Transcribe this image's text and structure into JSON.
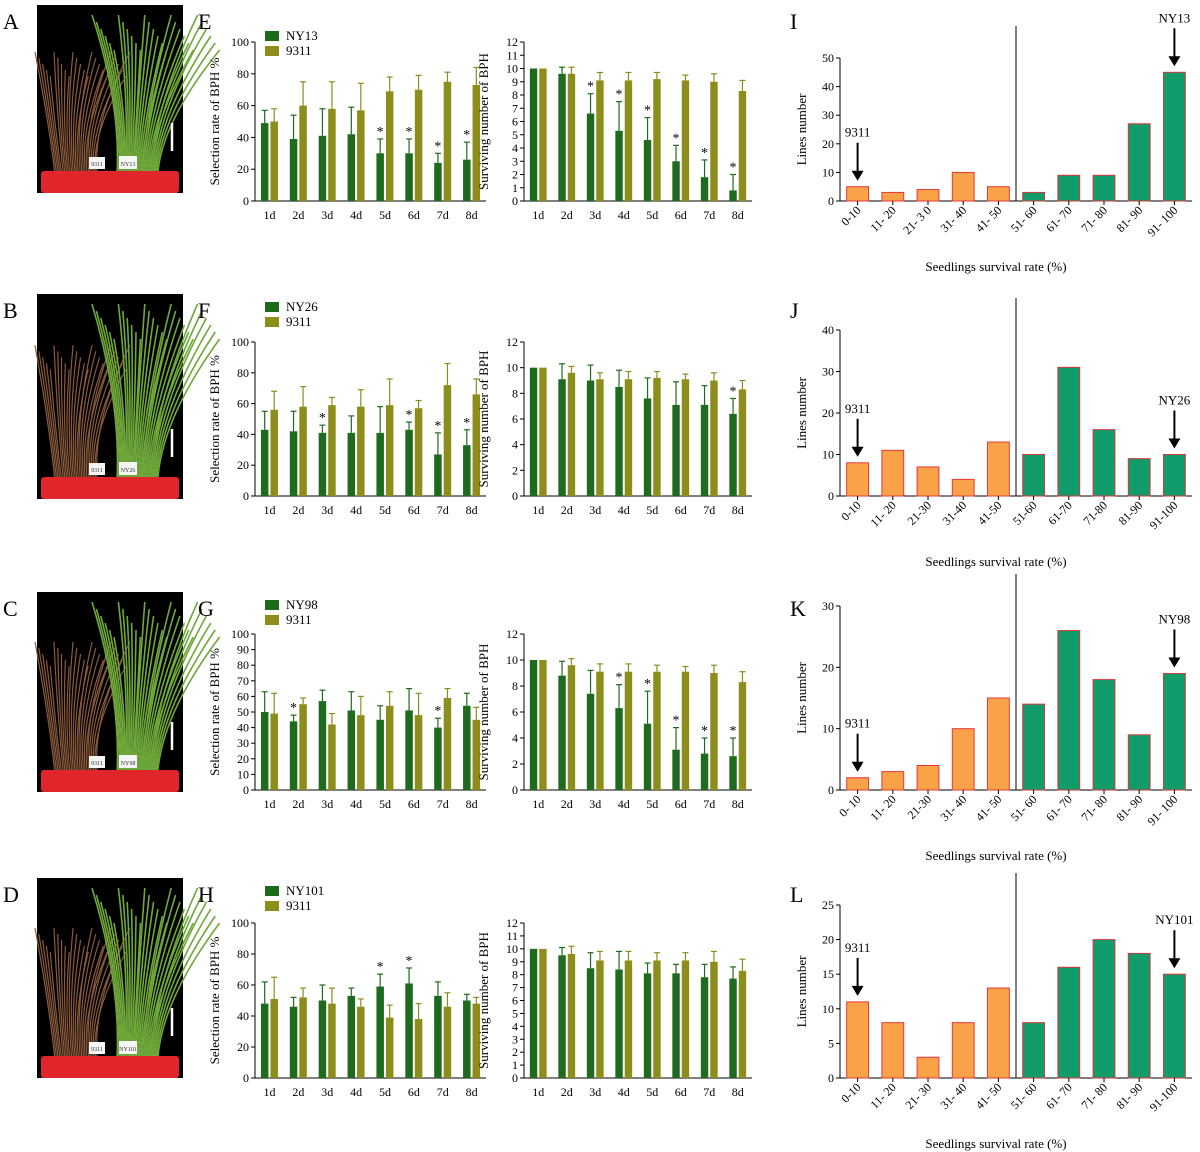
{
  "colors": {
    "ny": "#1e6b1e",
    "c9311": "#8d8d1b",
    "orange": "#f9a247",
    "orange_edge": "#e8373a",
    "green": "#139c6b",
    "green_edge": "#d7373a",
    "photo_bg": "#000000",
    "pot": "#e0262a",
    "bar_line": "#000000"
  },
  "photos": [
    {
      "letter": "A",
      "label_left": "9311",
      "label_right": "NY13"
    },
    {
      "letter": "B",
      "label_left": "9311",
      "label_right": "NY26"
    },
    {
      "letter": "C",
      "label_left": "9311",
      "label_right": "NY98"
    },
    {
      "letter": "D",
      "label_left": "9311",
      "label_right": "NY101"
    }
  ],
  "chart_data": [
    {
      "panel": "E",
      "type": "bar",
      "line": "NY13",
      "control": "9311",
      "categories": [
        "1d",
        "2d",
        "3d",
        "4d",
        "5d",
        "6d",
        "7d",
        "8d"
      ],
      "left": {
        "ylabel": "Selection rate of BPH %",
        "ylim": [
          0,
          100
        ],
        "yticks": [
          "0",
          "20",
          "40",
          "60",
          "80",
          "100"
        ],
        "series": [
          {
            "name": "NY13",
            "values": [
              49,
              39,
              41,
              42,
              30,
              30,
              24,
              26
            ],
            "err": [
              8,
              15,
              17,
              17,
              9,
              9,
              6,
              11
            ]
          },
          {
            "name": "9311",
            "values": [
              50,
              60,
              58,
              57,
              69,
              70,
              75,
              73
            ],
            "err": [
              8,
              15,
              17,
              17,
              9,
              9,
              6,
              11
            ]
          }
        ],
        "stars": [
          false,
          false,
          false,
          false,
          true,
          true,
          true,
          true
        ]
      },
      "right": {
        "ylabel": "Surviving number of BPH",
        "ylim": [
          0,
          12
        ],
        "yticks": [
          "0",
          "1",
          "2",
          "3",
          "4",
          "5",
          "6",
          "7",
          "8",
          "9",
          "10",
          "11",
          "12"
        ],
        "series": [
          {
            "name": "NY13",
            "values": [
              10,
              9.6,
              6.6,
              5.3,
              4.6,
              3.0,
              1.8,
              0.8
            ],
            "err": [
              0,
              0.5,
              1.5,
              2.2,
              1.7,
              1.2,
              1.3,
              1.2
            ]
          },
          {
            "name": "9311",
            "values": [
              10,
              9.6,
              9.1,
              9.1,
              9.2,
              9.1,
              9.0,
              8.3
            ],
            "err": [
              0,
              0.5,
              0.6,
              0.6,
              0.5,
              0.4,
              0.6,
              0.8
            ]
          }
        ],
        "stars": [
          false,
          false,
          true,
          true,
          true,
          true,
          true,
          true
        ]
      }
    },
    {
      "panel": "F",
      "type": "bar",
      "line": "NY26",
      "control": "9311",
      "categories": [
        "1d",
        "2d",
        "3d",
        "4d",
        "5d",
        "6d",
        "7d",
        "8d"
      ],
      "left": {
        "ylabel": "Selection rate of BPH %",
        "ylim": [
          0,
          100
        ],
        "yticks": [
          "0",
          "20",
          "40",
          "60",
          "80",
          "100"
        ],
        "series": [
          {
            "name": "NY26",
            "values": [
              43,
              42,
              41,
              41,
              41,
              43,
              27,
              33
            ],
            "err": [
              12,
              13,
              5,
              11,
              17,
              5,
              14,
              10
            ]
          },
          {
            "name": "9311",
            "values": [
              56,
              58,
              59,
              58,
              59,
              57,
              72,
              66
            ],
            "err": [
              12,
              13,
              5,
              11,
              17,
              5,
              14,
              10
            ]
          }
        ],
        "stars": [
          false,
          false,
          true,
          false,
          false,
          true,
          true,
          true
        ]
      },
      "right": {
        "ylabel": "Surviving number of BPH",
        "ylim": [
          0,
          12
        ],
        "yticks": [
          "0",
          "2",
          "4",
          "6",
          "8",
          "10",
          "12"
        ],
        "series": [
          {
            "name": "NY26",
            "values": [
              10,
              9.1,
              9.0,
              8.5,
              7.6,
              7.1,
              7.1,
              6.4
            ],
            "err": [
              0,
              1.2,
              1.2,
              1.3,
              1.6,
              1.8,
              1.5,
              1.2
            ]
          },
          {
            "name": "9311",
            "values": [
              10,
              9.6,
              9.1,
              9.1,
              9.2,
              9.1,
              9.0,
              8.3
            ],
            "err": [
              0,
              0.5,
              0.5,
              0.6,
              0.5,
              0.4,
              0.6,
              0.7
            ]
          }
        ],
        "stars": [
          false,
          false,
          false,
          false,
          false,
          false,
          false,
          true
        ]
      }
    },
    {
      "panel": "G",
      "type": "bar",
      "line": "NY98",
      "control": "9311",
      "categories": [
        "1d",
        "2d",
        "3d",
        "4d",
        "5d",
        "6d",
        "7d",
        "8d"
      ],
      "left": {
        "ylabel": "Selection rate of BPH %",
        "ylim": [
          0,
          100
        ],
        "yticks": [
          "0",
          "10",
          "20",
          "30",
          "40",
          "50",
          "60",
          "70",
          "80",
          "90",
          "100"
        ],
        "series": [
          {
            "name": "NY98",
            "values": [
              50,
              44,
              57,
              51,
              45,
              51,
              40,
              54
            ],
            "err": [
              13,
              4,
              7,
              12,
              9,
              14,
              6,
              8
            ]
          },
          {
            "name": "9311",
            "values": [
              49,
              55,
              42,
              48,
              54,
              48,
              59,
              45
            ],
            "err": [
              13,
              4,
              7,
              12,
              9,
              14,
              6,
              8
            ]
          }
        ],
        "stars": [
          false,
          true,
          false,
          false,
          false,
          false,
          true,
          false
        ]
      },
      "right": {
        "ylabel": "Surviving number of BPH",
        "ylim": [
          0,
          12
        ],
        "yticks": [
          "0",
          "2",
          "4",
          "6",
          "8",
          "10",
          "12"
        ],
        "series": [
          {
            "name": "NY98",
            "values": [
              10,
              8.8,
              7.4,
              6.3,
              5.1,
              3.1,
              2.8,
              2.6
            ],
            "err": [
              0,
              1.1,
              1.8,
              1.8,
              2.5,
              1.7,
              1.2,
              1.4
            ]
          },
          {
            "name": "9311",
            "values": [
              10,
              9.6,
              9.1,
              9.1,
              9.1,
              9.1,
              9.0,
              8.3
            ],
            "err": [
              0,
              0.5,
              0.6,
              0.6,
              0.5,
              0.4,
              0.6,
              0.8
            ]
          }
        ],
        "stars": [
          false,
          false,
          false,
          true,
          true,
          true,
          true,
          true
        ]
      }
    },
    {
      "panel": "H",
      "type": "bar",
      "line": "NY101",
      "control": "9311",
      "categories": [
        "1d",
        "2d",
        "3d",
        "4d",
        "5d",
        "6d",
        "7d",
        "8d"
      ],
      "left": {
        "ylabel": "Selection rate of BPH %",
        "ylim": [
          0,
          100
        ],
        "yticks": [
          "0",
          "20",
          "40",
          "60",
          "80",
          "100"
        ],
        "series": [
          {
            "name": "NY101",
            "values": [
              48,
              46,
              50,
              53,
              59,
              61,
              53,
              50
            ],
            "err": [
              14,
              6,
              10,
              5,
              8,
              10,
              9,
              4
            ]
          },
          {
            "name": "9311",
            "values": [
              51,
              52,
              48,
              46,
              39,
              38,
              46,
              48
            ],
            "err": [
              14,
              6,
              10,
              5,
              8,
              10,
              9,
              4
            ]
          }
        ],
        "stars": [
          false,
          false,
          false,
          false,
          true,
          true,
          false,
          false
        ]
      },
      "right": {
        "ylabel": "Surviving number of BPH",
        "ylim": [
          0,
          12
        ],
        "yticks": [
          "0",
          "1",
          "2",
          "3",
          "4",
          "5",
          "6",
          "7",
          "8",
          "9",
          "10",
          "11",
          "12"
        ],
        "series": [
          {
            "name": "NY101",
            "values": [
              10,
              9.5,
              8.5,
              8.4,
              8.1,
              8.1,
              7.8,
              7.7
            ],
            "err": [
              0,
              0.6,
              1.2,
              1.4,
              0.8,
              0.7,
              1.0,
              0.9
            ]
          },
          {
            "name": "9311",
            "values": [
              10,
              9.6,
              9.1,
              9.1,
              9.1,
              9.1,
              9.0,
              8.3
            ],
            "err": [
              0,
              0.6,
              0.7,
              0.7,
              0.6,
              0.6,
              0.8,
              0.9
            ]
          }
        ],
        "stars": [
          false,
          false,
          false,
          false,
          false,
          false,
          false,
          false
        ]
      }
    },
    {
      "panel": "I",
      "type": "bar",
      "xlabel": "Seedlings survival rate (%)",
      "ylabel": "Lines number",
      "categories": [
        "0-10",
        "11- 20",
        "21- 3 0",
        "31- 40",
        "41- 50",
        "51- 60",
        "61- 70",
        "71- 80",
        "81- 90",
        "91- 100"
      ],
      "values": [
        5,
        3,
        4,
        10,
        5,
        3,
        9,
        9,
        27,
        45
      ],
      "ylim": [
        0,
        50
      ],
      "yticks": [
        "0",
        "10",
        "20",
        "30",
        "40",
        "50"
      ],
      "arrow_left": "9311",
      "arrow_left_index": 0,
      "arrow_right": "NY13",
      "arrow_right_index": 9
    },
    {
      "panel": "J",
      "type": "bar",
      "xlabel": "Seedlings survival rate (%)",
      "ylabel": "Lines number",
      "categories": [
        "0-10",
        "11- 20",
        "21-30",
        "31-40",
        "41-50",
        "51-60",
        "61-70",
        "71-80",
        "81-90",
        "91-100"
      ],
      "values": [
        8,
        11,
        7,
        4,
        13,
        10,
        31,
        16,
        9,
        10
      ],
      "ylim": [
        0,
        40
      ],
      "yticks": [
        "0",
        "10",
        "20",
        "30",
        "40"
      ],
      "arrow_left": "9311",
      "arrow_left_index": 0,
      "arrow_right": "NY26",
      "arrow_right_index": 9
    },
    {
      "panel": "K",
      "type": "bar",
      "xlabel": "Seedlings survival rate (%)",
      "ylabel": "Lines number",
      "categories": [
        "0- 10",
        "11- 20",
        "21-30",
        "31- 40",
        "41- 50",
        "51- 60",
        "61- 70",
        "71- 80",
        "81- 90",
        "91- 100"
      ],
      "values": [
        2,
        3,
        4,
        10,
        15,
        14,
        26,
        18,
        9,
        19
      ],
      "ylim": [
        0,
        30
      ],
      "yticks": [
        "0",
        "10",
        "20",
        "30"
      ],
      "arrow_left": "9311",
      "arrow_left_index": 0,
      "arrow_right": "NY98",
      "arrow_right_index": 9
    },
    {
      "panel": "L",
      "type": "bar",
      "xlabel": "Seedlings survival rate (%)",
      "ylabel": "Lines number",
      "categories": [
        "0-10",
        "11- 20",
        "21- 30",
        "31- 40",
        "41- 50",
        "51- 60",
        "61- 70",
        "71- 80",
        "81- 90",
        "91-100"
      ],
      "values": [
        11,
        8,
        3,
        8,
        13,
        8,
        16,
        20,
        18,
        15
      ],
      "ylim": [
        0,
        25
      ],
      "yticks": [
        "0",
        "5",
        "10",
        "15",
        "20",
        "25"
      ],
      "arrow_left": "9311",
      "arrow_left_index": 0,
      "arrow_right": "NY101",
      "arrow_right_index": 9
    }
  ]
}
